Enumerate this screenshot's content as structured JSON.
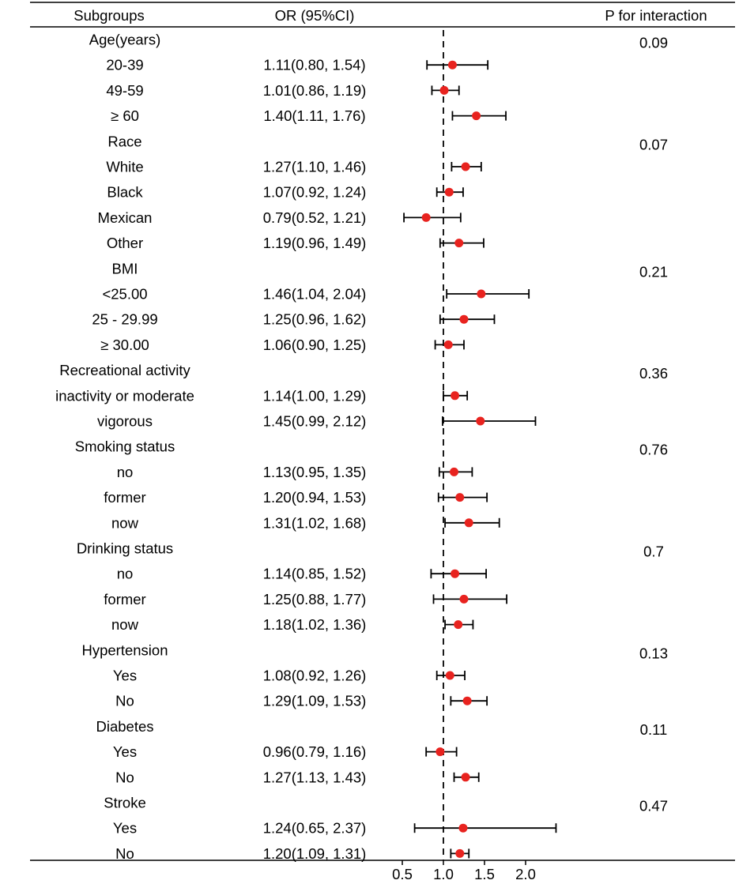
{
  "chart_data": {
    "type": "forest",
    "x_axis": {
      "ticks": [
        0.5,
        1.0,
        1.5,
        2.0
      ],
      "tick_labels": [
        "0.5",
        "1.0",
        "1.5",
        "2.0"
      ],
      "range": [
        0.4,
        2.5
      ],
      "reference_line": 1.0
    },
    "headers": {
      "subgroups": "Subgroups",
      "or_ci": "OR (95%CI)",
      "p_interaction": "P for interaction"
    },
    "marker_color": "#e8231f",
    "rows": [
      {
        "label": "Age(years)",
        "is_group": true,
        "p": "0.09"
      },
      {
        "label": "20-39",
        "or_text": "1.11(0.80, 1.54)",
        "or": 1.11,
        "lo": 0.8,
        "hi": 1.54
      },
      {
        "label": "49-59",
        "or_text": "1.01(0.86, 1.19)",
        "or": 1.01,
        "lo": 0.86,
        "hi": 1.19
      },
      {
        "label": "≥ 60",
        "or_text": "1.40(1.11, 1.76)",
        "or": 1.4,
        "lo": 1.11,
        "hi": 1.76
      },
      {
        "label": "Race",
        "is_group": true,
        "p": "0.07"
      },
      {
        "label": "White",
        "or_text": "1.27(1.10, 1.46)",
        "or": 1.27,
        "lo": 1.1,
        "hi": 1.46
      },
      {
        "label": "Black",
        "or_text": "1.07(0.92, 1.24)",
        "or": 1.07,
        "lo": 0.92,
        "hi": 1.24
      },
      {
        "label": "Mexican",
        "or_text": "0.79(0.52, 1.21)",
        "or": 0.79,
        "lo": 0.52,
        "hi": 1.21
      },
      {
        "label": "Other",
        "or_text": "1.19(0.96, 1.49)",
        "or": 1.19,
        "lo": 0.96,
        "hi": 1.49
      },
      {
        "label": "BMI",
        "is_group": true,
        "p": "0.21"
      },
      {
        "label": "<25.00",
        "or_text": "1.46(1.04, 2.04)",
        "or": 1.46,
        "lo": 1.04,
        "hi": 2.04
      },
      {
        "label": "25 - 29.99",
        "or_text": "1.25(0.96, 1.62)",
        "or": 1.25,
        "lo": 0.96,
        "hi": 1.62
      },
      {
        "label": "≥ 30.00",
        "or_text": "1.06(0.90, 1.25)",
        "or": 1.06,
        "lo": 0.9,
        "hi": 1.25
      },
      {
        "label": "Recreational activity",
        "is_group": true,
        "p": "0.36"
      },
      {
        "label": "inactivity or moderate",
        "or_text": "1.14(1.00, 1.29)",
        "or": 1.14,
        "lo": 1.0,
        "hi": 1.29
      },
      {
        "label": "vigorous",
        "or_text": "1.45(0.99, 2.12)",
        "or": 1.45,
        "lo": 0.99,
        "hi": 2.12
      },
      {
        "label": "Smoking status",
        "is_group": true,
        "p": "0.76"
      },
      {
        "label": "no",
        "or_text": "1.13(0.95, 1.35)",
        "or": 1.13,
        "lo": 0.95,
        "hi": 1.35
      },
      {
        "label": "former",
        "or_text": "1.20(0.94, 1.53)",
        "or": 1.2,
        "lo": 0.94,
        "hi": 1.53
      },
      {
        "label": "now",
        "or_text": "1.31(1.02, 1.68)",
        "or": 1.31,
        "lo": 1.02,
        "hi": 1.68
      },
      {
        "label": "Drinking status",
        "is_group": true,
        "p": "0.7"
      },
      {
        "label": "no",
        "or_text": "1.14(0.85, 1.52)",
        "or": 1.14,
        "lo": 0.85,
        "hi": 1.52
      },
      {
        "label": "former",
        "or_text": "1.25(0.88, 1.77)",
        "or": 1.25,
        "lo": 0.88,
        "hi": 1.77
      },
      {
        "label": "now",
        "or_text": "1.18(1.02, 1.36)",
        "or": 1.18,
        "lo": 1.02,
        "hi": 1.36
      },
      {
        "label": "Hypertension",
        "is_group": true,
        "p": "0.13"
      },
      {
        "label": "Yes",
        "or_text": "1.08(0.92, 1.26)",
        "or": 1.08,
        "lo": 0.92,
        "hi": 1.26
      },
      {
        "label": "No",
        "or_text": "1.29(1.09, 1.53)",
        "or": 1.29,
        "lo": 1.09,
        "hi": 1.53
      },
      {
        "label": "Diabetes",
        "is_group": true,
        "p": "0.11"
      },
      {
        "label": "Yes",
        "or_text": "0.96(0.79, 1.16)",
        "or": 0.96,
        "lo": 0.79,
        "hi": 1.16
      },
      {
        "label": "No",
        "or_text": "1.27(1.13, 1.43)",
        "or": 1.27,
        "lo": 1.13,
        "hi": 1.43
      },
      {
        "label": "Stroke",
        "is_group": true,
        "p": "0.47"
      },
      {
        "label": "Yes",
        "or_text": "1.24(0.65, 2.37)",
        "or": 1.24,
        "lo": 0.65,
        "hi": 2.37
      },
      {
        "label": "No",
        "or_text": "1.20(1.09, 1.31)",
        "or": 1.2,
        "lo": 1.09,
        "hi": 1.31
      }
    ]
  }
}
